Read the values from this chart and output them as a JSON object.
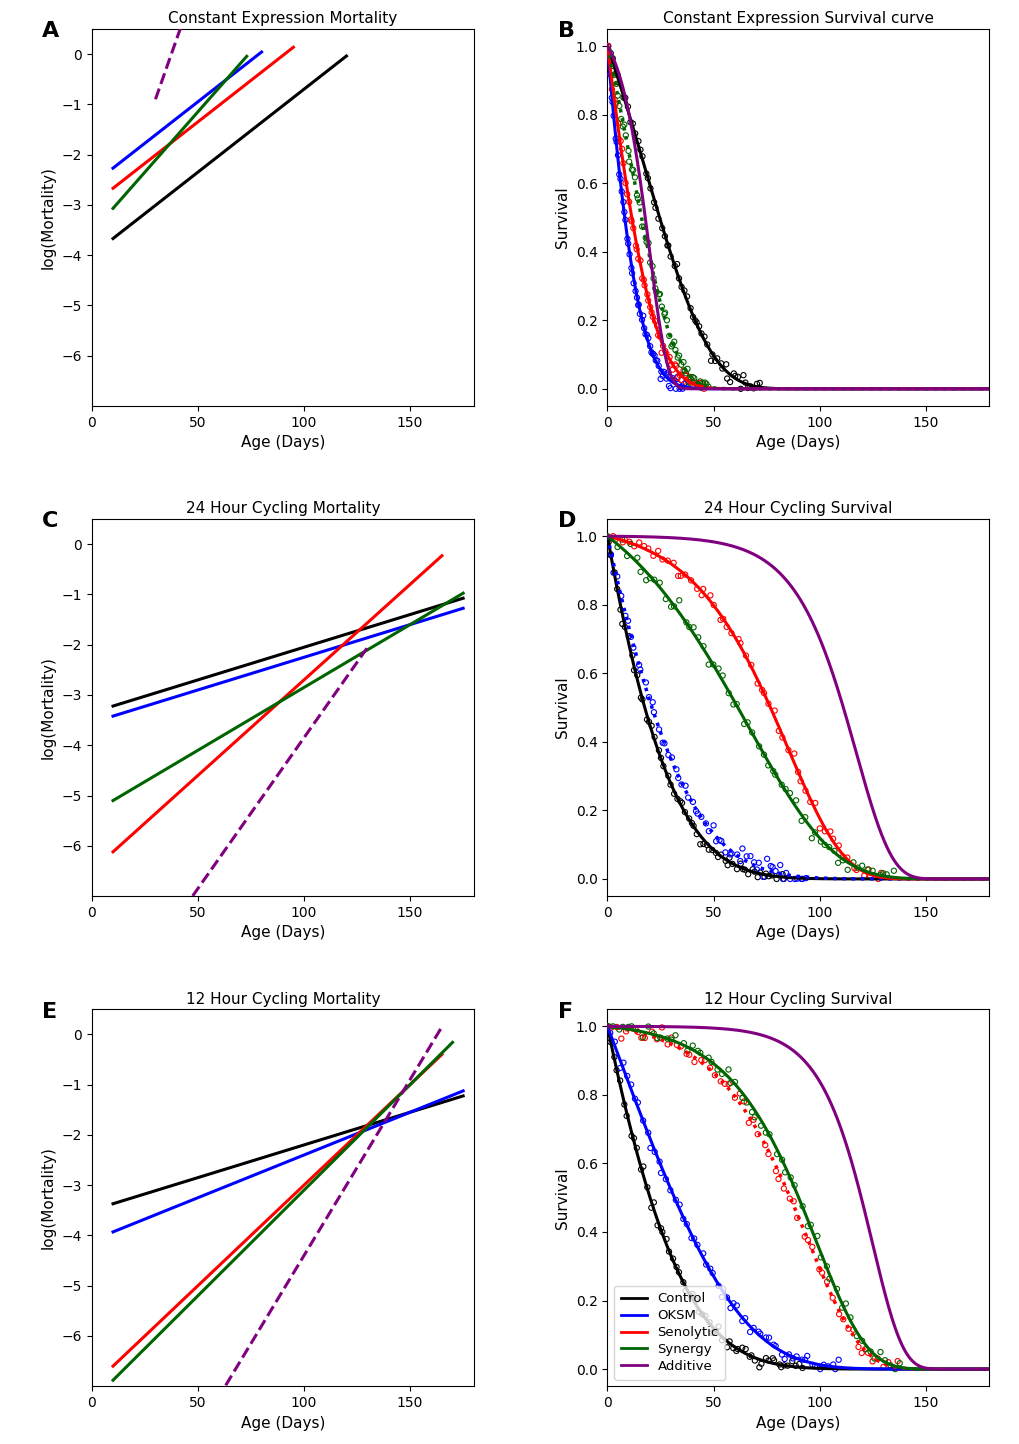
{
  "panels": {
    "A": {
      "title": "Constant Expression Mortality",
      "xlabel": "Age (Days)",
      "ylabel": "log(Mortality)",
      "xlim": [
        0,
        180
      ],
      "ylim": [
        -7,
        0.5
      ],
      "yticks": [
        0,
        -1,
        -2,
        -3,
        -4,
        -5,
        -6
      ],
      "xticks": [
        0,
        50,
        100,
        150
      ],
      "lines": [
        {
          "color": "black",
          "ls": "solid",
          "lw": 2.2,
          "x0": 10,
          "x1": 120,
          "logA": -4.0,
          "b": 0.033
        },
        {
          "color": "blue",
          "ls": "solid",
          "lw": 2.2,
          "x0": 10,
          "x1": 80,
          "logA": -2.6,
          "b": 0.033
        },
        {
          "color": "red",
          "ls": "solid",
          "lw": 2.2,
          "x0": 10,
          "x1": 95,
          "logA": -3.0,
          "b": 0.033
        },
        {
          "color": "darkgreen",
          "ls": "solid",
          "lw": 2.2,
          "x0": 10,
          "x1": 73,
          "logA": -3.55,
          "b": 0.048
        },
        {
          "color": "purple",
          "ls": "dashed",
          "lw": 2.2,
          "x0": 30,
          "x1": 67,
          "logA": -4.5,
          "b": 0.12
        }
      ]
    },
    "B": {
      "title": "Constant Expression Survival curve",
      "xlabel": "Age (Days)",
      "ylabel": "Survival",
      "xlim": [
        0,
        180
      ],
      "ylim": [
        -0.05,
        1.05
      ],
      "yticks": [
        0.0,
        0.2,
        0.4,
        0.6,
        0.8,
        1.0
      ],
      "xticks": [
        0,
        50,
        100,
        150
      ],
      "curves": [
        {
          "color": "black",
          "ls": "solid",
          "lw": 2.2,
          "logA": -4.0,
          "b": 0.033
        },
        {
          "color": "blue",
          "ls": "solid",
          "lw": 2.2,
          "logA": -2.6,
          "b": 0.033
        },
        {
          "color": "red",
          "ls": "solid",
          "lw": 2.2,
          "logA": -3.0,
          "b": 0.033
        },
        {
          "color": "darkgreen",
          "ls": "dotted",
          "lw": 2.5,
          "logA": -3.55,
          "b": 0.048
        },
        {
          "color": "purple",
          "ls": "solid",
          "lw": 2.2,
          "logA": -4.5,
          "b": 0.12
        }
      ],
      "scatter": [
        {
          "color": "black",
          "logA": -4.0,
          "b": 0.033,
          "n_pts": 60
        },
        {
          "color": "blue",
          "logA": -2.6,
          "b": 0.033,
          "n_pts": 60
        },
        {
          "color": "red",
          "logA": -3.0,
          "b": 0.033,
          "n_pts": 60
        },
        {
          "color": "darkgreen",
          "logA": -3.55,
          "b": 0.048,
          "n_pts": 60
        }
      ]
    },
    "C": {
      "title": "24 Hour Cycling Mortality",
      "xlabel": "Age (Days)",
      "ylabel": "log(Mortality)",
      "xlim": [
        0,
        180
      ],
      "ylim": [
        -7,
        0.5
      ],
      "yticks": [
        0,
        -1,
        -2,
        -3,
        -4,
        -5,
        -6
      ],
      "xticks": [
        0,
        50,
        100,
        150
      ],
      "lines": [
        {
          "color": "black",
          "ls": "solid",
          "lw": 2.2,
          "x0": 10,
          "x1": 175,
          "logA": -3.35,
          "b": 0.013
        },
        {
          "color": "blue",
          "ls": "solid",
          "lw": 2.2,
          "x0": 10,
          "x1": 175,
          "logA": -3.55,
          "b": 0.013
        },
        {
          "color": "red",
          "ls": "solid",
          "lw": 2.2,
          "x0": 10,
          "x1": 165,
          "logA": -6.5,
          "b": 0.038
        },
        {
          "color": "darkgreen",
          "ls": "solid",
          "lw": 2.2,
          "x0": 10,
          "x1": 175,
          "logA": -5.35,
          "b": 0.025
        },
        {
          "color": "purple",
          "ls": "dashed",
          "lw": 2.2,
          "x0": 20,
          "x1": 130,
          "logA": -9.85,
          "b": 0.06
        }
      ]
    },
    "D": {
      "title": "24 Hour Cycling Survival",
      "xlabel": "Age (Days)",
      "ylabel": "Survival",
      "xlim": [
        0,
        180
      ],
      "ylim": [
        -0.05,
        1.05
      ],
      "yticks": [
        0.0,
        0.2,
        0.4,
        0.6,
        0.8,
        1.0
      ],
      "xticks": [
        0,
        50,
        100,
        150
      ],
      "curves": [
        {
          "color": "black",
          "ls": "solid",
          "lw": 2.2,
          "logA": -3.35,
          "b": 0.013
        },
        {
          "color": "blue",
          "ls": "dotted",
          "lw": 2.5,
          "logA": -3.55,
          "b": 0.013
        },
        {
          "color": "red",
          "ls": "solid",
          "lw": 2.2,
          "logA": -6.5,
          "b": 0.038
        },
        {
          "color": "darkgreen",
          "ls": "solid",
          "lw": 2.2,
          "logA": -5.35,
          "b": 0.025
        },
        {
          "color": "purple",
          "ls": "solid",
          "lw": 2.2,
          "logA": -9.85,
          "b": 0.06
        }
      ],
      "scatter": [
        {
          "color": "black",
          "logA": -3.35,
          "b": 0.013,
          "n_pts": 60
        },
        {
          "color": "blue",
          "logA": -3.55,
          "b": 0.013,
          "n_pts": 60
        },
        {
          "color": "red",
          "logA": -6.5,
          "b": 0.038,
          "n_pts": 60
        },
        {
          "color": "darkgreen",
          "logA": -5.35,
          "b": 0.025,
          "n_pts": 60
        }
      ]
    },
    "E": {
      "title": "12 Hour Cycling Mortality",
      "xlabel": "Age (Days)",
      "ylabel": "log(Mortality)",
      "xlim": [
        0,
        180
      ],
      "ylim": [
        -7,
        0.5
      ],
      "yticks": [
        0,
        -1,
        -2,
        -3,
        -4,
        -5,
        -6
      ],
      "xticks": [
        0,
        50,
        100,
        150
      ],
      "lines": [
        {
          "color": "black",
          "ls": "solid",
          "lw": 2.2,
          "x0": 10,
          "x1": 175,
          "logA": -3.5,
          "b": 0.013
        },
        {
          "color": "blue",
          "ls": "solid",
          "lw": 2.2,
          "x0": 10,
          "x1": 175,
          "logA": -4.1,
          "b": 0.017
        },
        {
          "color": "red",
          "ls": "solid",
          "lw": 2.2,
          "x0": 10,
          "x1": 165,
          "logA": -7.0,
          "b": 0.04
        },
        {
          "color": "darkgreen",
          "ls": "solid",
          "lw": 2.2,
          "x0": 10,
          "x1": 170,
          "logA": -7.3,
          "b": 0.042
        },
        {
          "color": "purple",
          "ls": "dashed",
          "lw": 2.2,
          "x0": 10,
          "x1": 165,
          "logA": -11.4,
          "b": 0.07
        }
      ]
    },
    "F": {
      "title": "12 Hour Cycling Survival",
      "xlabel": "Age (Days)",
      "ylabel": "Survival",
      "xlim": [
        0,
        180
      ],
      "ylim": [
        -0.05,
        1.05
      ],
      "yticks": [
        0.0,
        0.2,
        0.4,
        0.6,
        0.8,
        1.0
      ],
      "xticks": [
        0,
        50,
        100,
        150
      ],
      "curves": [
        {
          "color": "black",
          "ls": "solid",
          "lw": 2.2,
          "logA": -3.5,
          "b": 0.013
        },
        {
          "color": "blue",
          "ls": "solid",
          "lw": 2.2,
          "logA": -4.1,
          "b": 0.017
        },
        {
          "color": "red",
          "ls": "dotted",
          "lw": 2.5,
          "logA": -7.0,
          "b": 0.04
        },
        {
          "color": "darkgreen",
          "ls": "solid",
          "lw": 2.2,
          "logA": -7.3,
          "b": 0.042
        },
        {
          "color": "purple",
          "ls": "solid",
          "lw": 2.2,
          "logA": -11.4,
          "b": 0.07
        }
      ],
      "scatter": [
        {
          "color": "black",
          "logA": -3.5,
          "b": 0.013,
          "n_pts": 60
        },
        {
          "color": "blue",
          "logA": -4.1,
          "b": 0.017,
          "n_pts": 60
        },
        {
          "color": "red",
          "logA": -7.0,
          "b": 0.04,
          "n_pts": 60
        },
        {
          "color": "darkgreen",
          "logA": -7.3,
          "b": 0.042,
          "n_pts": 60
        }
      ],
      "legend": [
        {
          "color": "black",
          "ls": "solid",
          "label": "Control"
        },
        {
          "color": "blue",
          "ls": "solid",
          "label": "OKSM"
        },
        {
          "color": "red",
          "ls": "solid",
          "label": "Senolytic"
        },
        {
          "color": "darkgreen",
          "ls": "solid",
          "label": "Synergy"
        },
        {
          "color": "purple",
          "ls": "solid",
          "label": "Additive"
        }
      ]
    }
  },
  "panel_labels": [
    "A",
    "B",
    "C",
    "D",
    "E",
    "F"
  ],
  "background_color": "white",
  "fig_width": 10.2,
  "fig_height": 14.44
}
